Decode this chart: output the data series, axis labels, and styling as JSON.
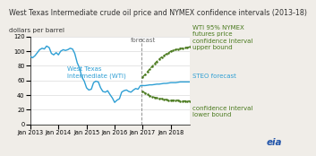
{
  "title": "West Texas Intermediate crude oil price and NYMEX confidence intervals (2013-18)",
  "ylabel": "dollars per barrel",
  "ylim": [
    0,
    120
  ],
  "yticks": [
    0,
    20,
    40,
    60,
    80,
    100,
    120
  ],
  "background_color": "#f0ede8",
  "plot_bg_color": "#ffffff",
  "wti_color": "#2e9fd4",
  "forecast_color": "#2e9fd4",
  "ci_color": "#4a7a1e",
  "forecast_line_x": 2016.95,
  "wti_x": [
    2013.0,
    2013.08,
    2013.17,
    2013.25,
    2013.33,
    2013.42,
    2013.5,
    2013.58,
    2013.67,
    2013.75,
    2013.83,
    2013.92,
    2014.0,
    2014.08,
    2014.17,
    2014.25,
    2014.33,
    2014.42,
    2014.5,
    2014.58,
    2014.67,
    2014.75,
    2014.83,
    2014.92,
    2015.0,
    2015.08,
    2015.17,
    2015.25,
    2015.33,
    2015.42,
    2015.5,
    2015.58,
    2015.67,
    2015.75,
    2015.83,
    2015.92,
    2016.0,
    2016.08,
    2016.17,
    2016.25,
    2016.33,
    2016.42,
    2016.5,
    2016.58,
    2016.67,
    2016.75,
    2016.83,
    2016.92,
    2017.0
  ],
  "wti_y": [
    93,
    91,
    94,
    98,
    102,
    104,
    103,
    107,
    105,
    97,
    95,
    98,
    95,
    100,
    102,
    101,
    102,
    104,
    103,
    97,
    84,
    77,
    65,
    59,
    50,
    47,
    48,
    57,
    59,
    58,
    50,
    45,
    44,
    46,
    41,
    36,
    30,
    33,
    35,
    44,
    46,
    47,
    45,
    44,
    47,
    49,
    48,
    53,
    53
  ],
  "steo_x": [
    2017.0,
    2017.08,
    2017.17,
    2017.25,
    2017.33,
    2017.42,
    2017.5,
    2017.58,
    2017.67,
    2017.75,
    2017.83,
    2017.92,
    2018.0,
    2018.08,
    2018.17,
    2018.25,
    2018.33,
    2018.42,
    2018.5,
    2018.58,
    2018.67
  ],
  "steo_y": [
    53,
    53,
    53.5,
    54,
    54,
    54.5,
    55,
    55,
    55.5,
    56,
    56,
    56.5,
    57,
    57,
    57,
    57.5,
    58,
    58,
    58,
    58,
    58
  ],
  "upper_x": [
    2017.0,
    2017.08,
    2017.17,
    2017.25,
    2017.33,
    2017.42,
    2017.5,
    2017.58,
    2017.67,
    2017.75,
    2017.83,
    2017.92,
    2018.0,
    2018.08,
    2018.17,
    2018.25,
    2018.33,
    2018.42,
    2018.5,
    2018.58,
    2018.67
  ],
  "upper_y": [
    65,
    68,
    72,
    76,
    79,
    83,
    86,
    89,
    92,
    94,
    96,
    98,
    100,
    101,
    102,
    103,
    104,
    104,
    105,
    105,
    106
  ],
  "lower_x": [
    2017.0,
    2017.08,
    2017.17,
    2017.25,
    2017.33,
    2017.42,
    2017.5,
    2017.58,
    2017.67,
    2017.75,
    2017.83,
    2017.92,
    2018.0,
    2018.08,
    2018.17,
    2018.25,
    2018.33,
    2018.42,
    2018.5,
    2018.58,
    2018.67
  ],
  "lower_y": [
    45,
    43,
    41,
    39,
    38,
    37,
    36,
    35,
    35,
    34,
    34,
    33,
    33,
    33,
    33,
    33,
    32,
    32,
    32,
    32,
    32
  ],
  "xlim": [
    2013.0,
    2018.67
  ],
  "xtick_positions": [
    2013.0,
    2014.0,
    2015.0,
    2016.0,
    2017.0,
    2018.0
  ],
  "xtick_labels": [
    "Jan 2013",
    "Jan 2014",
    "Jan 2015",
    "Jan 2016",
    "Jan 2017",
    "Jan 2018"
  ],
  "wti_label": "West Texas\nIntermediate (WTI)",
  "steo_label": "STEO forecast",
  "upper_label": "WTI 95% NYMEX\nfutures price\nconfidence interval\nupper bound",
  "lower_label": "confidence interval\nlower bound",
  "forecast_label": "forecast",
  "eia_label": "eia",
  "title_fontsize": 5.8,
  "ylabel_fontsize": 5.2,
  "tick_fontsize": 4.8,
  "annotation_fontsize": 5.0,
  "side_label_fontsize": 5.0
}
